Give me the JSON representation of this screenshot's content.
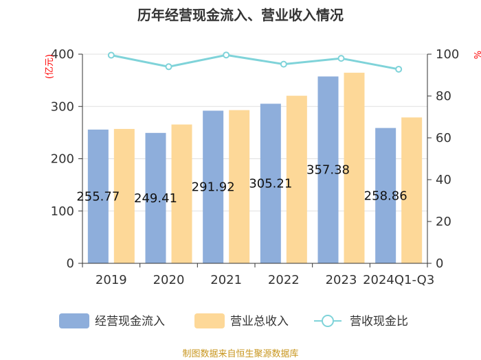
{
  "chart_data": {
    "type": "bar+line",
    "title": "历年经营现金流入、营业收入情况",
    "categories": [
      "2019",
      "2020",
      "2021",
      "2022",
      "2023",
      "2024Q1-Q3"
    ],
    "series": [
      {
        "name": "经营现金流入",
        "axis": "left",
        "kind": "bar",
        "color": "#8eaedb",
        "values": [
          255.77,
          249.41,
          291.92,
          305.21,
          357.38,
          258.86
        ],
        "labels": [
          "255.77",
          "249.41",
          "291.92",
          "305.21",
          "357.38",
          "258.86"
        ]
      },
      {
        "name": "营业总收入",
        "axis": "left",
        "kind": "bar",
        "color": "#fdd898",
        "values": [
          257.0,
          265.5,
          293.0,
          320.5,
          364.5,
          279.0
        ]
      },
      {
        "name": "营收现金比",
        "axis": "right",
        "kind": "line",
        "color": "#7fd3d9",
        "values": [
          99.5,
          94.0,
          99.6,
          95.2,
          98.0,
          92.8
        ]
      }
    ],
    "y_left": {
      "label": "(亿元)",
      "min": 0,
      "max": 400,
      "ticks": [
        "0",
        "100",
        "200",
        "300",
        "400"
      ]
    },
    "y_right": {
      "label": "%",
      "min": 0,
      "max": 100,
      "ticks": [
        "0",
        "20",
        "40",
        "60",
        "80",
        "100"
      ]
    },
    "grid": true,
    "legend_position": "bottom"
  },
  "source_text": "制图数据来自恒生聚源数据库"
}
